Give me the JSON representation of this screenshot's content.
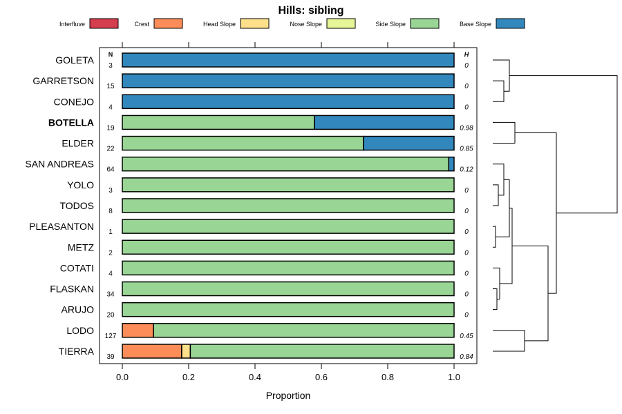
{
  "chart_data": {
    "type": "bar",
    "stacked": true,
    "orientation": "horizontal",
    "title": "Hills: sibling",
    "xlabel": "Proportion",
    "xlim": [
      0,
      1
    ],
    "x_ticks": [
      0.0,
      0.2,
      0.4,
      0.6,
      0.8,
      1.0
    ],
    "x_tick_labels": [
      "0.0",
      "0.2",
      "0.4",
      "0.6",
      "0.8",
      "1.0"
    ],
    "n_header": "N",
    "h_header": "H",
    "legend_position": "top",
    "legend": [
      {
        "name": "Interfluve",
        "color": "#d53e4f"
      },
      {
        "name": "Crest",
        "color": "#fc8d59"
      },
      {
        "name": "Head Slope",
        "color": "#fee08b"
      },
      {
        "name": "Nose Slope",
        "color": "#e6f598"
      },
      {
        "name": "Side Slope",
        "color": "#99d594"
      },
      {
        "name": "Base Slope",
        "color": "#3288bd"
      }
    ],
    "categories": [
      "GOLETA",
      "GARRETSON",
      "CONEJO",
      "BOTELLA",
      "ELDER",
      "SAN ANDREAS",
      "YOLO",
      "TODOS",
      "PLEASANTON",
      "METZ",
      "COTATI",
      "FLASKAN",
      "ARUJO",
      "LODO",
      "TIERRA"
    ],
    "highlight": "BOTELLA",
    "n": [
      "3",
      "15",
      "4",
      "19",
      "22",
      "64",
      "3",
      "8",
      "1",
      "2",
      "4",
      "34",
      "20",
      "127",
      "39"
    ],
    "h": [
      "0",
      "0",
      "0",
      "0.98",
      "0.85",
      "0.12",
      "0",
      "0",
      "0",
      "0",
      "0",
      "0",
      "0",
      "0.45",
      "0.84"
    ],
    "series": [
      {
        "name": "Interfluve",
        "values": [
          0,
          0,
          0,
          0,
          0,
          0,
          0,
          0,
          0,
          0,
          0,
          0,
          0,
          0,
          0
        ]
      },
      {
        "name": "Crest",
        "values": [
          0,
          0,
          0,
          0,
          0,
          0,
          0,
          0,
          0,
          0,
          0,
          0,
          0,
          0.094,
          0.179
        ]
      },
      {
        "name": "Head Slope",
        "values": [
          0,
          0,
          0,
          0,
          0,
          0,
          0,
          0,
          0,
          0,
          0,
          0,
          0,
          0,
          0.026
        ]
      },
      {
        "name": "Nose Slope",
        "values": [
          0,
          0,
          0,
          0,
          0,
          0,
          0,
          0,
          0,
          0,
          0,
          0,
          0,
          0,
          0
        ]
      },
      {
        "name": "Side Slope",
        "values": [
          0,
          0,
          0,
          0.579,
          0.727,
          0.984,
          1,
          1,
          1,
          1,
          1,
          1,
          1,
          0.906,
          0.795
        ]
      },
      {
        "name": "Base Slope",
        "values": [
          1,
          1,
          1,
          0.421,
          0.273,
          0.016,
          0,
          0,
          0,
          0,
          0,
          0,
          0,
          0,
          0
        ]
      }
    ],
    "dendrogram": {
      "leaf_order": [
        "GOLETA",
        "GARRETSON",
        "CONEJO",
        "BOTELLA",
        "ELDER",
        "SAN ANDREAS",
        "YOLO",
        "TODOS",
        "PLEASANTON",
        "METZ",
        "COTATI",
        "FLASKAN",
        "ARUJO",
        "LODO",
        "TIERRA"
      ],
      "merges": [
        {
          "a": "GARRETSON",
          "b": "CONEJO",
          "height": 0.04
        },
        {
          "a": "GOLETA",
          "b": "#0",
          "height": 0.06
        },
        {
          "a": "BOTELLA",
          "b": "ELDER",
          "height": 0.08
        },
        {
          "a": "YOLO",
          "b": "TODOS",
          "height": 0.02
        },
        {
          "a": "SAN ANDREAS",
          "b": "#3",
          "height": 0.04
        },
        {
          "a": "PLEASANTON",
          "b": "METZ",
          "height": 0.01
        },
        {
          "a": "#4",
          "b": "#5",
          "height": 0.06
        },
        {
          "a": "FLASKAN",
          "b": "ARUJO",
          "height": 0.015
        },
        {
          "a": "COTATI",
          "b": "#7",
          "height": 0.025
        },
        {
          "a": "#6",
          "b": "#8",
          "height": 0.07
        },
        {
          "a": "LODO",
          "b": "TIERRA",
          "height": 0.115
        },
        {
          "a": "#9",
          "b": "#10",
          "height": 0.2
        },
        {
          "a": "#2",
          "b": "#11",
          "height": 0.23
        },
        {
          "a": "#1",
          "b": "#12",
          "height": 0.45
        }
      ]
    }
  }
}
